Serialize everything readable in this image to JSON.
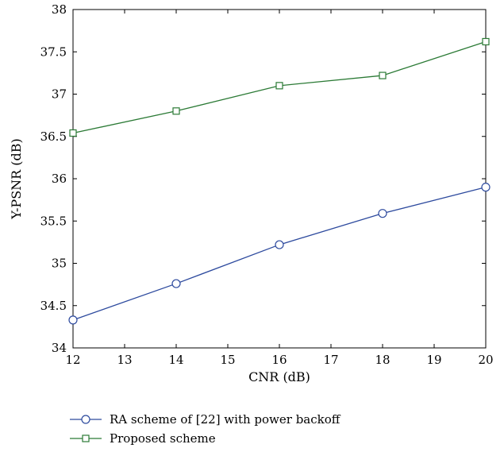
{
  "chart_data": {
    "type": "line",
    "xlabel": "CNR (dB)",
    "ylabel": "Y-PSNR (dB)",
    "xlim": [
      12,
      20
    ],
    "ylim": [
      34,
      38
    ],
    "xticks": [
      "12",
      "13",
      "14",
      "15",
      "16",
      "17",
      "18",
      "19",
      "20"
    ],
    "yticks": [
      "34",
      "34.5",
      "35",
      "35.5",
      "36",
      "36.5",
      "37",
      "37.5",
      "38"
    ],
    "grid": false,
    "legend_position": "bottom-center",
    "series": [
      {
        "name": "RA scheme of [22] with power backoff",
        "color": "#2d4a9e",
        "marker": "circle",
        "x": [
          12,
          14,
          16,
          18,
          20
        ],
        "y": [
          34.33,
          34.76,
          35.22,
          35.59,
          35.9
        ]
      },
      {
        "name": "Proposed scheme",
        "color": "#2b7a35",
        "marker": "square",
        "x": [
          12,
          14,
          16,
          18,
          20
        ],
        "y": [
          36.54,
          36.8,
          37.1,
          37.22,
          37.62
        ]
      }
    ]
  }
}
